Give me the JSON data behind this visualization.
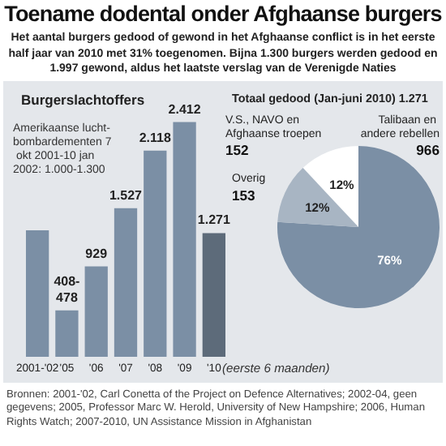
{
  "chart_data": [
    {
      "type": "other",
      "title": "Toename dodental onder Afghaanse burgers",
      "subtitle": "Het aantal burgers gedood of gewond in het Afghaanse conflict is in het eerste half jaar van 2010 met 31% toegenomen. Bijna 1.300 burgers werden gedood en 1.997 gewond, aldus het laatste verslag van de Verenigde Naties",
      "annotations": [
        "Bronnen: 2001-'02, Carl Conetta of the Project on Defence Alternatives; 2002-04, geen gegevens; 2005, Professor Marc W. Herold, University of New Hampshire; 2006, Human Rights Watch; 2007-2010, UN Assistance Mission in Afghanistan"
      ]
    },
    {
      "type": "bar",
      "title": "Burgerslachtoffers",
      "categories": [
        "2001-'02",
        "'05",
        "'06",
        "'07",
        "'08",
        "'09",
        "'10"
      ],
      "values": [
        1300,
        478,
        929,
        1527,
        2118,
        2412,
        1271
      ],
      "value_labels": [
        null,
        "408-\n478",
        "929",
        "1.527",
        "2.118",
        "2.412",
        "1.271"
      ],
      "colors": [
        "#7b8fa5",
        "#7b8fa5",
        "#7b8fa5",
        "#7b8fa5",
        "#7b8fa5",
        "#7b8fa5",
        "#5d6b7a"
      ],
      "tick_labels": "x",
      "grid": false,
      "annotations": [
        "Amerikaanse lucht-bombardementen 7 okt 2001-10 jan 2002: 1.000-1.300",
        "(eerste 6 maanden)"
      ]
    },
    {
      "type": "pie",
      "title": "Totaal gedood (Jan-juni 2010) 1.271",
      "categories": [
        "V.S., NAVO en Afghaanse troepen",
        "Talibaan en andere rebellen",
        "Overig"
      ],
      "values": [
        12,
        76,
        12
      ],
      "value_labels": [
        "12%",
        "76%",
        "12%"
      ],
      "colors": [
        "#ffffff",
        "#7b8fa5",
        "#a8b5c3"
      ],
      "legend": false,
      "annotations": [
        "152",
        "966",
        "153"
      ]
    }
  ]
}
